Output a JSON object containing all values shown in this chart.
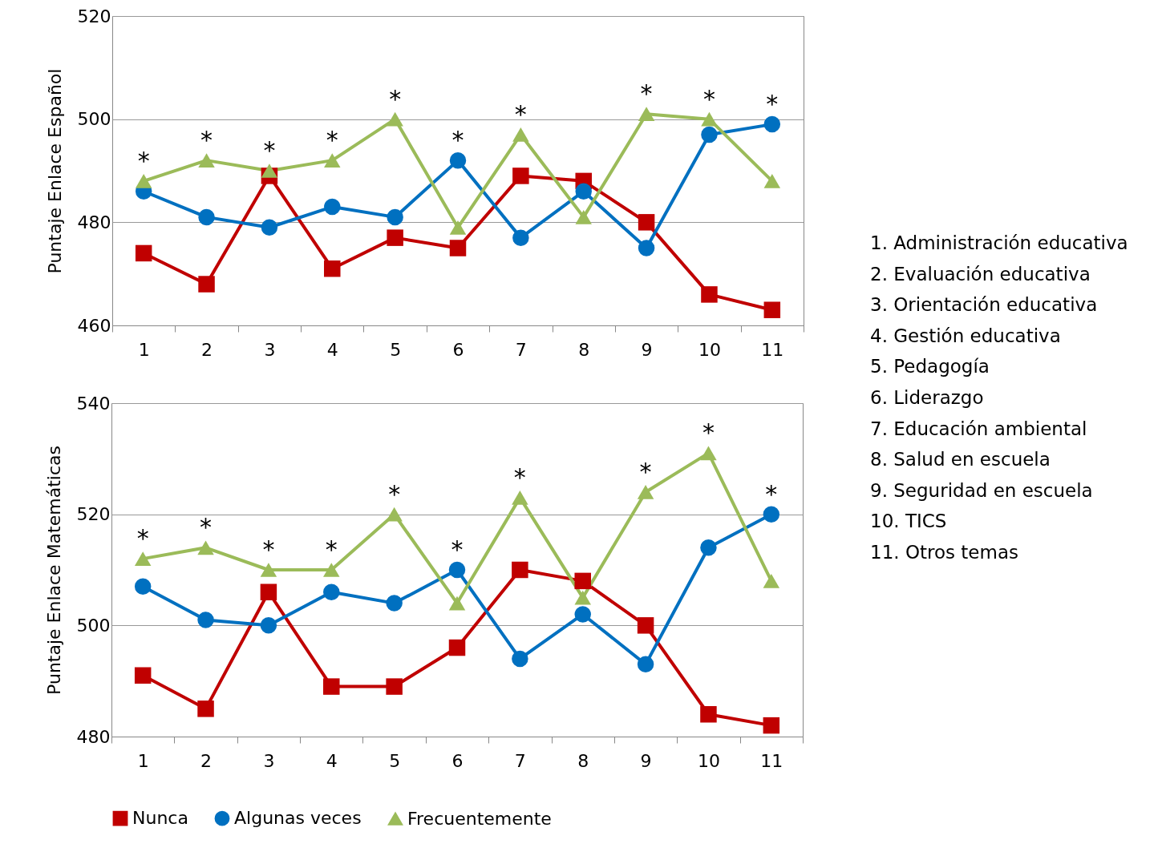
{
  "chart_data": [
    {
      "type": "line",
      "ylabel": "Puntaje Enlace Español",
      "categories": [
        "1",
        "2",
        "3",
        "4",
        "5",
        "6",
        "7",
        "8",
        "9",
        "10",
        "11"
      ],
      "series": [
        {
          "color": "#c00000",
          "marker": "square",
          "values": [
            474,
            468,
            489,
            471,
            477,
            475,
            489,
            488,
            480,
            466,
            463
          ]
        },
        {
          "color": "#0070c0",
          "marker": "circle",
          "values": [
            486,
            481,
            479,
            483,
            481,
            492,
            477,
            486,
            475,
            497,
            499
          ]
        },
        {
          "color": "#9bbb59",
          "marker": "triangle",
          "values": [
            488,
            492,
            490,
            492,
            500,
            479,
            497,
            481,
            501,
            500,
            488
          ]
        }
      ],
      "ylim": [
        460,
        520
      ],
      "yticks": [
        460,
        480,
        500,
        520
      ],
      "grid": "y",
      "legend": false,
      "line_style": "solid",
      "annotations": [
        {
          "text": "*",
          "x": "1",
          "y": 488
        },
        {
          "text": "*",
          "x": "2",
          "y": 492
        },
        {
          "text": "*",
          "x": "3",
          "y": 490
        },
        {
          "text": "*",
          "x": "4",
          "y": 492
        },
        {
          "text": "*",
          "x": "5",
          "y": 500
        },
        {
          "text": "*",
          "x": "6",
          "y": 492
        },
        {
          "text": "*",
          "x": "7",
          "y": 497
        },
        {
          "text": "*",
          "x": "9",
          "y": 501
        },
        {
          "text": "*",
          "x": "10",
          "y": 500
        },
        {
          "text": "*",
          "x": "11",
          "y": 499
        },
        "1. Administración educativa",
        "2. Evaluación educativa",
        "3. Orientación educativa",
        "4. Gestión educativa",
        "5. Pedagogía",
        "6. Liderazgo",
        "7. Educación ambiental",
        "8. Salud en escuela",
        "9. Seguridad en escuela",
        "10. TICS",
        "11. Otros temas"
      ]
    },
    {
      "type": "line",
      "ylabel": "Puntaje Enlace Matemáticas",
      "categories": [
        "1",
        "2",
        "3",
        "4",
        "5",
        "6",
        "7",
        "8",
        "9",
        "10",
        "11"
      ],
      "series": [
        {
          "name": "Nunca",
          "color": "#c00000",
          "marker": "square",
          "values": [
            491,
            485,
            506,
            489,
            489,
            496,
            510,
            508,
            500,
            484,
            482
          ]
        },
        {
          "name": "Algunas veces",
          "color": "#0070c0",
          "marker": "circle",
          "values": [
            507,
            501,
            500,
            506,
            504,
            510,
            494,
            502,
            493,
            514,
            520
          ]
        },
        {
          "name": "Frecuentemente",
          "color": "#9bbb59",
          "marker": "triangle",
          "values": [
            512,
            514,
            510,
            510,
            520,
            504,
            523,
            505,
            524,
            531,
            508
          ]
        }
      ],
      "ylim": [
        480,
        540
      ],
      "yticks": [
        480,
        500,
        520,
        540
      ],
      "grid": "y",
      "legend": "bottom",
      "line_style": "solid",
      "annotations": [
        {
          "text": "*",
          "x": "1",
          "y": 512
        },
        {
          "text": "*",
          "x": "2",
          "y": 514
        },
        {
          "text": "*",
          "x": "3",
          "y": 510
        },
        {
          "text": "*",
          "x": "4",
          "y": 510
        },
        {
          "text": "*",
          "x": "5",
          "y": 520
        },
        {
          "text": "*",
          "x": "6",
          "y": 510
        },
        {
          "text": "*",
          "x": "7",
          "y": 523
        },
        {
          "text": "*",
          "x": "9",
          "y": 524
        },
        {
          "text": "*",
          "x": "10",
          "y": 531
        },
        {
          "text": "*",
          "x": "11",
          "y": 520
        }
      ]
    }
  ]
}
